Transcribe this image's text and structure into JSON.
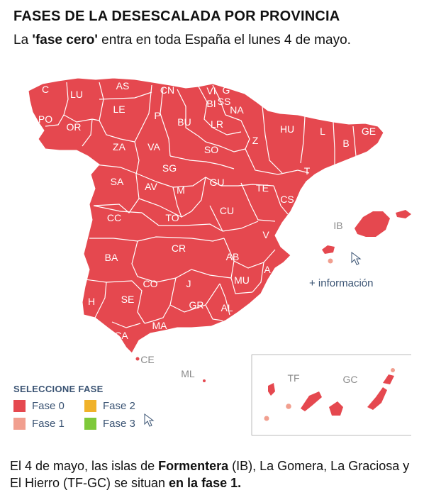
{
  "header": {
    "title": "FASES DE LA DESESCALADA POR PROVINCIA",
    "subtitle_pre": "La ",
    "subtitle_bold": "'fase cero'",
    "subtitle_post": " entra en toda España el lunes 4 de mayo."
  },
  "colors": {
    "fase0": "#e5484f",
    "fase1": "#f19f8f",
    "fase2": "#f0b22a",
    "fase3": "#7ec93a",
    "border": "#ffffff",
    "legend_text": "#3a5373"
  },
  "provinces": [
    "C",
    "LU",
    "AS",
    "CN",
    "VI",
    "G",
    "BI",
    "SS",
    "NA",
    "PO",
    "OR",
    "LE",
    "P",
    "BU",
    "LR",
    "HU",
    "L",
    "GE",
    "ZA",
    "VA",
    "SO",
    "Z",
    "B",
    "SG",
    "SA",
    "AV",
    "M",
    "GU",
    "TE",
    "T",
    "CS",
    "CC",
    "TO",
    "CU",
    "V",
    "BA",
    "CR",
    "AB",
    "A",
    "CO",
    "J",
    "MU",
    "H",
    "SE",
    "GR",
    "AL",
    "CA",
    "MA"
  ],
  "outside_labels": {
    "ib": "IB",
    "ce": "CE",
    "ml": "ML",
    "tf": "TF",
    "gc": "GC"
  },
  "legend": {
    "title": "SELECCIONE FASE",
    "items": [
      {
        "label": "Fase 0",
        "phase": 0
      },
      {
        "label": "Fase 2",
        "phase": 2
      },
      {
        "label": "Fase 1",
        "phase": 1
      },
      {
        "label": "Fase 3",
        "phase": 3
      }
    ]
  },
  "info_link": "+ información",
  "footer": {
    "t1": "El 4 de mayo, las islas de ",
    "b1": "Formentera",
    "t2": " (IB), La Gomera, La Graciosa y El Hierro (TF-GC) se situan ",
    "b2": "en la fase 1."
  },
  "map_phases": {
    "default": 0,
    "phase_1": [
      "Formentera (IB)",
      "La Gomera (TF)",
      "La Graciosa (GC)",
      "El Hierro (TF)"
    ]
  }
}
